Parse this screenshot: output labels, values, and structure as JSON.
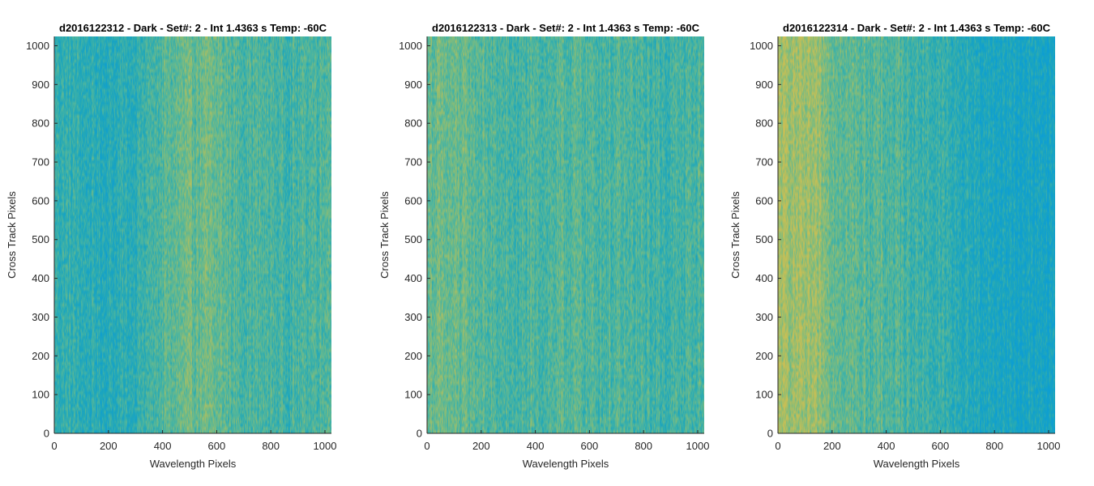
{
  "chart_data": [
    {
      "type": "heatmap",
      "title": "d2016122312 - Dark - Set#: 2 - Int 1.4363 s Temp: -60C",
      "xlabel": "Wavelength Pixels",
      "ylabel": "Cross Track Pixels",
      "xlim": [
        0,
        1024
      ],
      "ylim": [
        0,
        1024
      ],
      "xticks": [
        0,
        200,
        400,
        600,
        800,
        1000
      ],
      "yticks": [
        0,
        100,
        200,
        300,
        400,
        500,
        600,
        700,
        800,
        900,
        1000
      ],
      "colormap": [
        "#0d9ed4",
        "#1fa7b9",
        "#4db6a0",
        "#8cbd74",
        "#c9bf55"
      ],
      "column_profile": [
        0.38,
        0.34,
        0.3,
        0.28,
        0.32,
        0.4,
        0.52,
        0.6,
        0.62,
        0.58,
        0.5,
        0.48,
        0.46,
        0.44,
        0.5,
        0.55
      ],
      "grid": false
    },
    {
      "type": "heatmap",
      "title": "d2016122313 - Dark - Set#: 2 - Int 1.4363 s Temp: -60C",
      "xlabel": "Wavelength Pixels",
      "ylabel": "Cross Track Pixels",
      "xlim": [
        0,
        1024
      ],
      "ylim": [
        0,
        1024
      ],
      "xticks": [
        0,
        200,
        400,
        600,
        800,
        1000
      ],
      "yticks": [
        0,
        100,
        200,
        300,
        400,
        500,
        600,
        700,
        800,
        900,
        1000
      ],
      "colormap": [
        "#0d9ed4",
        "#1fa7b9",
        "#4db6a0",
        "#8cbd74",
        "#c9bf55"
      ],
      "column_profile": [
        0.62,
        0.6,
        0.58,
        0.52,
        0.46,
        0.44,
        0.48,
        0.5,
        0.52,
        0.5,
        0.48,
        0.46,
        0.44,
        0.42,
        0.45,
        0.48
      ],
      "grid": false
    },
    {
      "type": "heatmap",
      "title": "d2016122314 - Dark - Set#: 2 - Int 1.4363 s Temp: -60C",
      "xlabel": "Wavelength Pixels",
      "ylabel": "Cross Track Pixels",
      "xlim": [
        0,
        1024
      ],
      "ylim": [
        0,
        1024
      ],
      "xticks": [
        0,
        200,
        400,
        600,
        800,
        1000
      ],
      "yticks": [
        0,
        100,
        200,
        300,
        400,
        500,
        600,
        700,
        800,
        900,
        1000
      ],
      "colormap": [
        "#0d9ed4",
        "#1fa7b9",
        "#4db6a0",
        "#8cbd74",
        "#c9bf55"
      ],
      "column_profile": [
        0.85,
        0.82,
        0.76,
        0.64,
        0.56,
        0.54,
        0.5,
        0.46,
        0.4,
        0.36,
        0.28,
        0.22,
        0.18,
        0.16,
        0.14,
        0.12
      ],
      "grid": false
    }
  ]
}
